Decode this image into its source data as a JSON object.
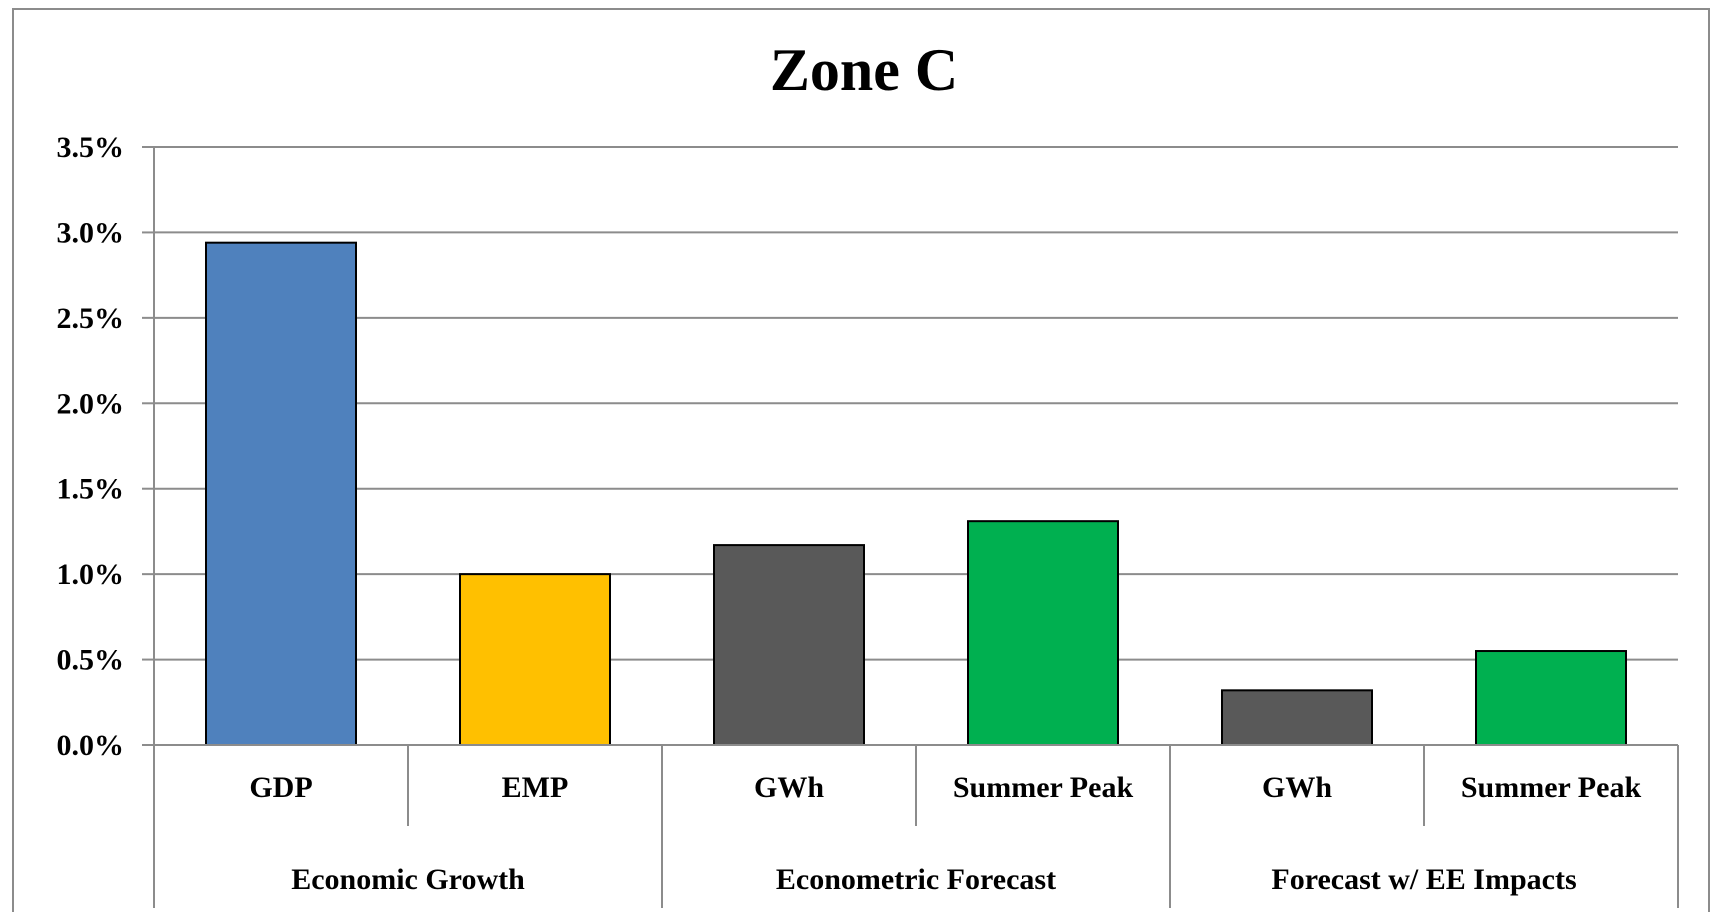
{
  "chart_data": {
    "type": "bar",
    "title": "Zone C",
    "xlabel": "",
    "ylabel": "",
    "ylim": [
      0,
      0.035
    ],
    "yticks": [
      {
        "value": 0.0,
        "label": "0.0%"
      },
      {
        "value": 0.005,
        "label": "0.5%"
      },
      {
        "value": 0.01,
        "label": "1.0%"
      },
      {
        "value": 0.015,
        "label": "1.5%"
      },
      {
        "value": 0.02,
        "label": "2.0%"
      },
      {
        "value": 0.025,
        "label": "2.5%"
      },
      {
        "value": 0.03,
        "label": "3.0%"
      },
      {
        "value": 0.035,
        "label": "3.5%"
      }
    ],
    "grid": true,
    "legend": "none",
    "groups": [
      {
        "label": "Economic Growth",
        "size": 2
      },
      {
        "label": "Econometric Forecast",
        "size": 2
      },
      {
        "label": "Forecast w/ EE Impacts",
        "size": 2
      }
    ],
    "categories": [
      "GDP",
      "EMP",
      "GWh",
      "Summer Peak",
      "GWh",
      "Summer Peak"
    ],
    "values": [
      0.0294,
      0.01,
      0.0117,
      0.0131,
      0.0032,
      0.0055
    ],
    "bar_colors": [
      "#4f81bd",
      "#ffc000",
      "#595959",
      "#00b050",
      "#595959",
      "#00b050"
    ]
  }
}
